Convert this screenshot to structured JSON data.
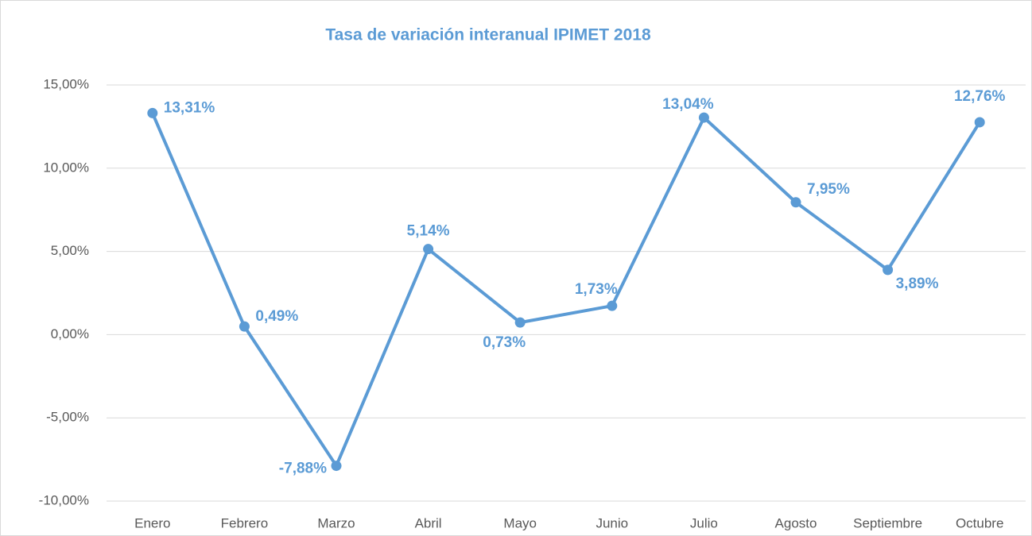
{
  "chart_data": {
    "type": "line",
    "title": "Tasa de variación interanual IPIMET 2018",
    "categories": [
      "Enero",
      "Febrero",
      "Marzo",
      "Abril",
      "Mayo",
      "Junio",
      "Julio",
      "Agosto",
      "Septiembre",
      "Octubre"
    ],
    "series": [
      {
        "name": "Tasa de variación interanual IPIMET 2018",
        "color": "#5b9bd5",
        "values": [
          13.31,
          0.49,
          -7.88,
          5.14,
          0.73,
          1.73,
          13.04,
          7.95,
          3.89,
          12.76
        ],
        "value_labels": [
          "13,31%",
          "0,49%",
          "-7,88%",
          "5,14%",
          "0,73%",
          "1,73%",
          "13,04%",
          "7,95%",
          "3,89%",
          "12,76%"
        ]
      }
    ],
    "ylim": [
      -10,
      15
    ],
    "yticks": [
      {
        "value": -10,
        "label": "-10,00%"
      },
      {
        "value": -5,
        "label": "-5,00%"
      },
      {
        "value": 0,
        "label": "0,00%"
      },
      {
        "value": 5,
        "label": "5,00%"
      },
      {
        "value": 10,
        "label": "10,00%"
      },
      {
        "value": 15,
        "label": "15,00%"
      }
    ],
    "grid": true
  }
}
